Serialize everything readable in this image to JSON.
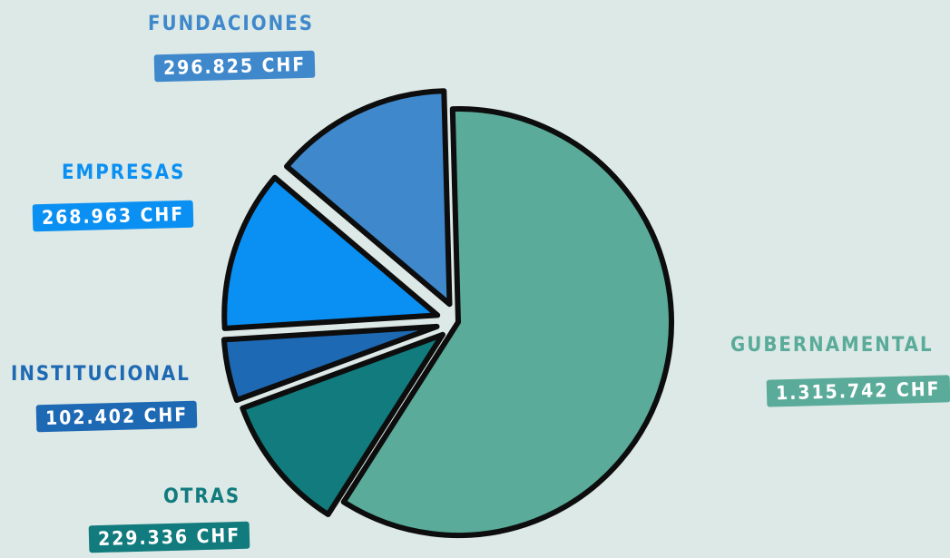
{
  "chart_data": {
    "type": "pie",
    "title": "",
    "unit": "CHF",
    "slices": [
      {
        "name": "GUBERNAMENTAL",
        "value": 1315742,
        "display": "1.315.742 CHF",
        "color": "#5aab9a"
      },
      {
        "name": "OTRAS",
        "value": 229336,
        "display": "229.336 CHF",
        "color": "#117b7e"
      },
      {
        "name": "INSTITUCIONAL",
        "value": 102402,
        "display": "102.402 CHF",
        "color": "#1e69b3"
      },
      {
        "name": "EMPRESAS",
        "value": 268963,
        "display": "268.963 CHF",
        "color": "#0a8ff2"
      },
      {
        "name": "FUNDACIONES",
        "value": 296825,
        "display": "296.825 CHF",
        "color": "#3f88cb"
      }
    ],
    "legend": "none"
  }
}
